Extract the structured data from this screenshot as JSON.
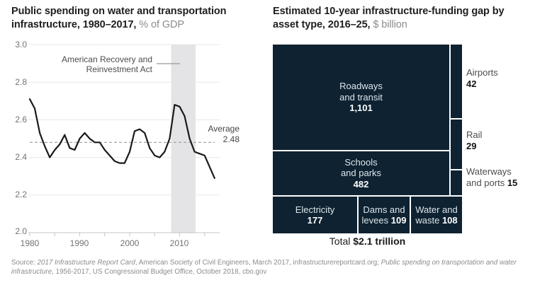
{
  "left_chart": {
    "title_bold": "Public spending on water and transportation infrastructure, 1980–2017,",
    "title_unit": " % of GDP",
    "yticks": [
      "3.0",
      "2.8",
      "2.6",
      "2.4",
      "2.2",
      "2.0"
    ],
    "xticks": [
      "1980",
      "1990",
      "2000",
      "2010"
    ],
    "annotation_line1": "American Recovery and",
    "annotation_line2": "Reinvestment Act",
    "average_label": "Average",
    "average_value": "2.48"
  },
  "right_chart": {
    "title_bold": "Estimated 10-year infrastructure-funding gap by asset type, 2016–25,",
    "title_unit": " $ billion"
  },
  "treemap": {
    "roadways": {
      "l1": "Roadways",
      "l2": "and transit",
      "value": "1,101"
    },
    "schools": {
      "l1": "Schools",
      "l2": "and parks",
      "value": "482"
    },
    "electricity": {
      "l1": "Electricity",
      "value": "177"
    },
    "dams": {
      "l1": "Dams and",
      "l2": "levees",
      "value": "109"
    },
    "water": {
      "l1": "Water and",
      "l2": "waste",
      "value": "108"
    },
    "airports": {
      "label": "Airports",
      "value": "42"
    },
    "rail": {
      "label": "Rail",
      "value": "29"
    },
    "waterways_l1": "Waterways",
    "waterways_l2": "and ports",
    "waterways_value": "15",
    "total_label": "Total ",
    "total_value": "$2.1 trillion"
  },
  "source": {
    "prefix": "Source: ",
    "italic1": "2017 Infrastructure Report Card",
    "mid": ", American Society of Civil Engineers, March 2017, infrastructurereportcard.org; ",
    "italic2": "Public spending on transportation and water infrastructure",
    "suffix": ", 1956-2017, US Congressional Budget Office, October 2018, cbo.gov"
  },
  "colors": {
    "treemap_fill": "#0e2231",
    "line": "#1a1a1a",
    "gridline": "#e7e7e7",
    "axis": "#c5c5c5",
    "band": "#e4e4e6",
    "dashed": "#9b9b9b"
  },
  "chart_data": [
    {
      "type": "line",
      "title": "Public spending on water and transportation infrastructure, 1980–2017, % of GDP",
      "x": [
        1980,
        1981,
        1982,
        1983,
        1984,
        1985,
        1986,
        1987,
        1988,
        1989,
        1990,
        1991,
        1992,
        1993,
        1994,
        1995,
        1996,
        1997,
        1998,
        1999,
        2000,
        2001,
        2002,
        2003,
        2004,
        2005,
        2006,
        2007,
        2008,
        2009,
        2010,
        2011,
        2012,
        2013,
        2014,
        2015,
        2016,
        2017
      ],
      "y": [
        2.71,
        2.66,
        2.53,
        2.46,
        2.4,
        2.44,
        2.47,
        2.52,
        2.45,
        2.44,
        2.5,
        2.53,
        2.5,
        2.48,
        2.48,
        2.44,
        2.41,
        2.38,
        2.37,
        2.37,
        2.43,
        2.54,
        2.55,
        2.53,
        2.45,
        2.41,
        2.4,
        2.43,
        2.5,
        2.68,
        2.67,
        2.62,
        2.5,
        2.43,
        2.42,
        2.41,
        2.35,
        2.29
      ],
      "ylim": [
        2.0,
        3.0
      ],
      "ytick_values": [
        2.0,
        2.2,
        2.4,
        2.6,
        2.8,
        3.0
      ],
      "xtick_values": [
        1980,
        1985,
        1990,
        1995,
        2000,
        2005,
        2010,
        2015
      ],
      "xlabel_values": [
        1980,
        1990,
        2000,
        2010
      ],
      "average_line": 2.48,
      "grid": "horizontal",
      "highlight_band": {
        "label": "American Recovery and Reinvestment Act",
        "x_start": 2008.3,
        "x_end": 2013.2
      }
    },
    {
      "type": "treemap",
      "title": "Estimated 10-year infrastructure-funding gap by asset type, 2016–25, $ billion",
      "items": [
        {
          "label": "Roadways and transit",
          "value": 1101
        },
        {
          "label": "Schools and parks",
          "value": 482
        },
        {
          "label": "Electricity",
          "value": 177
        },
        {
          "label": "Dams and levees",
          "value": 109
        },
        {
          "label": "Water and waste",
          "value": 108
        },
        {
          "label": "Airports",
          "value": 42
        },
        {
          "label": "Rail",
          "value": 29
        },
        {
          "label": "Waterways and ports",
          "value": 15
        }
      ],
      "total": "Total $2.1 trillion"
    }
  ]
}
